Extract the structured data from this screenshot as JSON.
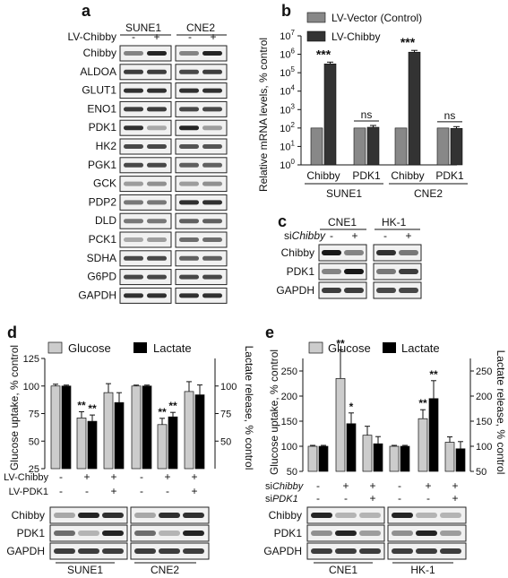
{
  "panels": {
    "a": "a",
    "b": "b",
    "c": "c",
    "d": "d",
    "e": "e"
  },
  "panel_a": {
    "cell_lines": [
      "SUNE1",
      "CNE2"
    ],
    "treatment_label": "LV-Chibby",
    "signs": [
      "-",
      "+",
      "-",
      "+"
    ],
    "rows": [
      "Chibby",
      "ALDOA",
      "GLUT1",
      "ENO1",
      "PDK1",
      "HK2",
      "PGK1",
      "GCK",
      "PDP2",
      "DLD",
      "PCK1",
      "SDHA",
      "G6PD",
      "GAPDH"
    ]
  },
  "panel_b": {
    "legend": [
      "LV-Vector (Control)",
      "LV-Chibby"
    ],
    "ylabel": "Relative mRNA levels, % control",
    "yticks": [
      "10^0",
      "10^1",
      "10^2",
      "10^3",
      "10^4",
      "10^5",
      "10^6",
      "10^7"
    ],
    "categories": [
      "Chibby",
      "PDK1",
      "Chibby",
      "PDK1"
    ],
    "groups": [
      "SUNE1",
      "CNE2"
    ],
    "annotations": [
      "***",
      "ns",
      "***",
      "ns"
    ]
  },
  "panel_c": {
    "cell_lines": [
      "CNE1",
      "HK-1"
    ],
    "treatment_prefix": "si",
    "treatment_gene": "Chibby",
    "signs": [
      "-",
      "+",
      "-",
      "+"
    ],
    "rows": [
      "Chibby",
      "PDK1",
      "GAPDH"
    ]
  },
  "panel_d": {
    "legend": [
      "Glucose",
      "Lactate"
    ],
    "ylabel_left": "Glucose uptake, % control",
    "ylabel_right": "Lactate release, % control",
    "yticks_left": [
      "25",
      "50",
      "75",
      "100",
      "125"
    ],
    "yticks_right": [
      "50",
      "75",
      "100"
    ],
    "treatments": [
      {
        "label": "LV-Chibby",
        "signs": [
          "-",
          "+",
          "+",
          "-",
          "+",
          "+"
        ]
      },
      {
        "label": "LV-PDK1",
        "signs": [
          "-",
          "-",
          "+",
          "-",
          "-",
          "+"
        ]
      }
    ],
    "annotations": [
      "**",
      "**",
      "**",
      "**"
    ],
    "blot_rows": [
      "Chibby",
      "PDK1",
      "GAPDH"
    ],
    "cell_lines": [
      "SUNE1",
      "CNE2"
    ]
  },
  "panel_e": {
    "legend": [
      "Glucose",
      "Lactate"
    ],
    "ylabel_left": "Glucose uptake, % control",
    "ylabel_right": "Lactate release, % control",
    "yticks_left": [
      "50",
      "100",
      "150",
      "200",
      "250"
    ],
    "yticks_right": [
      "50",
      "100",
      "150",
      "200",
      "250"
    ],
    "treatments": [
      {
        "prefix": "si",
        "gene": "Chibby",
        "signs": [
          "-",
          "+",
          "+",
          "-",
          "+",
          "+"
        ]
      },
      {
        "prefix": "si",
        "gene": "PDK1",
        "signs": [
          "-",
          "-",
          "+",
          "-",
          "-",
          "+"
        ]
      }
    ],
    "annotations": [
      "**",
      "*",
      "**",
      "**"
    ],
    "blot_rows": [
      "Chibby",
      "PDK1",
      "GAPDH"
    ],
    "cell_lines": [
      "CNE1",
      "HK-1"
    ]
  },
  "chart_data": [
    {
      "type": "bar",
      "panel": "b",
      "scale": "log",
      "ylabel": "Relative mRNA levels, % control",
      "categories": [
        "SUNE1 Chibby",
        "SUNE1 PDK1",
        "CNE2 Chibby",
        "CNE2 PDK1"
      ],
      "series": [
        {
          "name": "LV-Vector (Control)",
          "values": [
            100,
            100,
            100,
            100
          ],
          "color": "#888888"
        },
        {
          "name": "LV-Chibby",
          "values": [
            300000,
            110,
            1300000,
            95
          ],
          "color": "#333333"
        }
      ],
      "ylim": [
        1,
        10000000
      ]
    },
    {
      "type": "bar",
      "panel": "d",
      "ylabel": "Glucose uptake, % control",
      "categories": [
        "SUNE1 1",
        "SUNE1 2",
        "SUNE1 3",
        "CNE2 1",
        "CNE2 2",
        "CNE2 3"
      ],
      "series": [
        {
          "name": "Glucose",
          "values": [
            100,
            71,
            94,
            100,
            65,
            95
          ],
          "color": "#cccccc"
        },
        {
          "name": "Lactate",
          "values": [
            100,
            68,
            85,
            100,
            72,
            92
          ],
          "color": "#000000"
        }
      ],
      "ylim": [
        25,
        125
      ]
    },
    {
      "type": "bar",
      "panel": "e",
      "ylabel": "Glucose uptake, % control",
      "categories": [
        "CNE1 1",
        "CNE1 2",
        "CNE1 3",
        "HK-1 1",
        "HK-1 2",
        "HK-1 3"
      ],
      "series": [
        {
          "name": "Glucose",
          "values": [
            100,
            235,
            122,
            100,
            155,
            108
          ],
          "color": "#cccccc"
        },
        {
          "name": "Lactate",
          "values": [
            100,
            145,
            105,
            100,
            195,
            95
          ],
          "color": "#000000"
        }
      ],
      "ylim": [
        50,
        275
      ]
    }
  ]
}
